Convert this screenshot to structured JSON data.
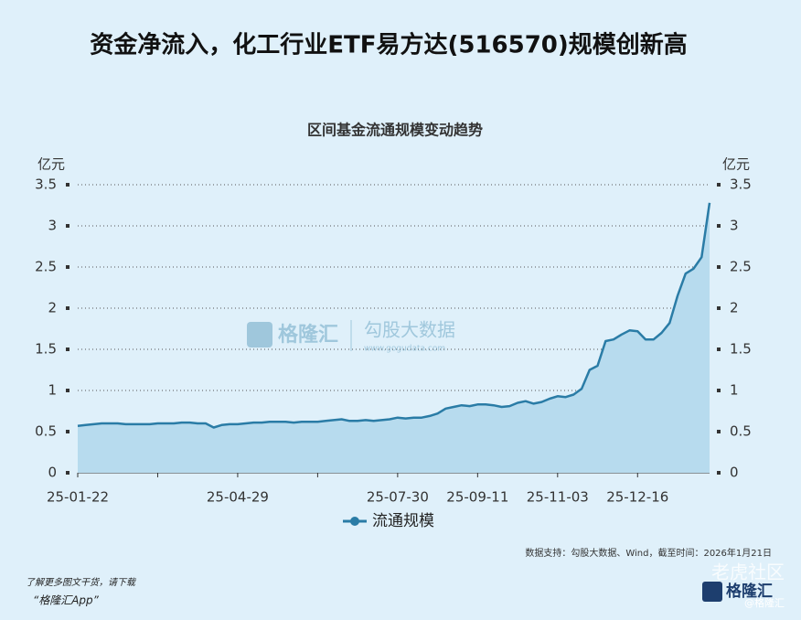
{
  "page": {
    "headline": "资金净流入，化工行业ETF易方达(516570)规模创新高",
    "source": "数据支持：勾股大数据、Wind，截至时间：2026年1月21日",
    "promo_line1": "了解更多图文干货，请下载",
    "promo_line2": "“格隆汇App”",
    "watermark_brand": "格隆汇",
    "watermark_data": "勾股大数据",
    "watermark_url": "www.gogudata.com",
    "logo": "格隆汇",
    "corner_mark": "老虎社区",
    "corner_handle": "@格隆汇"
  },
  "chart_data": {
    "type": "line",
    "title": "区间基金流通规模变动趋势",
    "y_label": "亿元",
    "y2_label": "亿元",
    "categories": [
      "25-01-22",
      null,
      null,
      null,
      null,
      null,
      null,
      null,
      null,
      null,
      null,
      null,
      null,
      null,
      null,
      null,
      null,
      null,
      null,
      null,
      "25-04-29",
      null,
      null,
      null,
      null,
      null,
      null,
      null,
      null,
      null,
      null,
      null,
      null,
      null,
      null,
      null,
      null,
      null,
      null,
      null,
      "25-07-30",
      null,
      null,
      null,
      null,
      null,
      null,
      null,
      null,
      null,
      "25-09-11",
      null,
      null,
      null,
      null,
      null,
      null,
      null,
      null,
      null,
      "25-11-03",
      null,
      null,
      null,
      null,
      null,
      null,
      null,
      null,
      null,
      "25-12-16",
      null,
      null,
      null,
      null,
      null,
      null,
      null,
      null,
      null
    ],
    "series": [
      {
        "name": "流通规模",
        "color": "#2a7ca6",
        "fill": "#b7dbee",
        "values": [
          0.57,
          0.58,
          0.59,
          0.6,
          0.6,
          0.6,
          0.59,
          0.59,
          0.59,
          0.59,
          0.6,
          0.6,
          0.6,
          0.61,
          0.61,
          0.6,
          0.6,
          0.55,
          0.58,
          0.59,
          0.59,
          0.6,
          0.61,
          0.61,
          0.62,
          0.62,
          0.62,
          0.61,
          0.62,
          0.62,
          0.62,
          0.63,
          0.64,
          0.65,
          0.63,
          0.63,
          0.64,
          0.63,
          0.64,
          0.65,
          0.67,
          0.66,
          0.67,
          0.67,
          0.69,
          0.72,
          0.78,
          0.8,
          0.82,
          0.81,
          0.83,
          0.83,
          0.82,
          0.8,
          0.81,
          0.85,
          0.87,
          0.84,
          0.86,
          0.9,
          0.93,
          0.92,
          0.95,
          1.02,
          1.25,
          1.3,
          1.6,
          1.62,
          1.68,
          1.73,
          1.72,
          1.62,
          1.62,
          1.7,
          1.82,
          2.15,
          2.42,
          2.48,
          2.62,
          3.28
        ]
      }
    ],
    "ylim": [
      0,
      3.5
    ],
    "yticks": [
      0,
      0.5,
      1,
      1.5,
      2,
      2.5,
      3,
      3.5
    ],
    "y2lim": [
      0,
      3.5
    ],
    "y2ticks": [
      0,
      0.5,
      1,
      1.5,
      2,
      2.5,
      3,
      3.5
    ],
    "grid": true,
    "legend": "bottom"
  }
}
